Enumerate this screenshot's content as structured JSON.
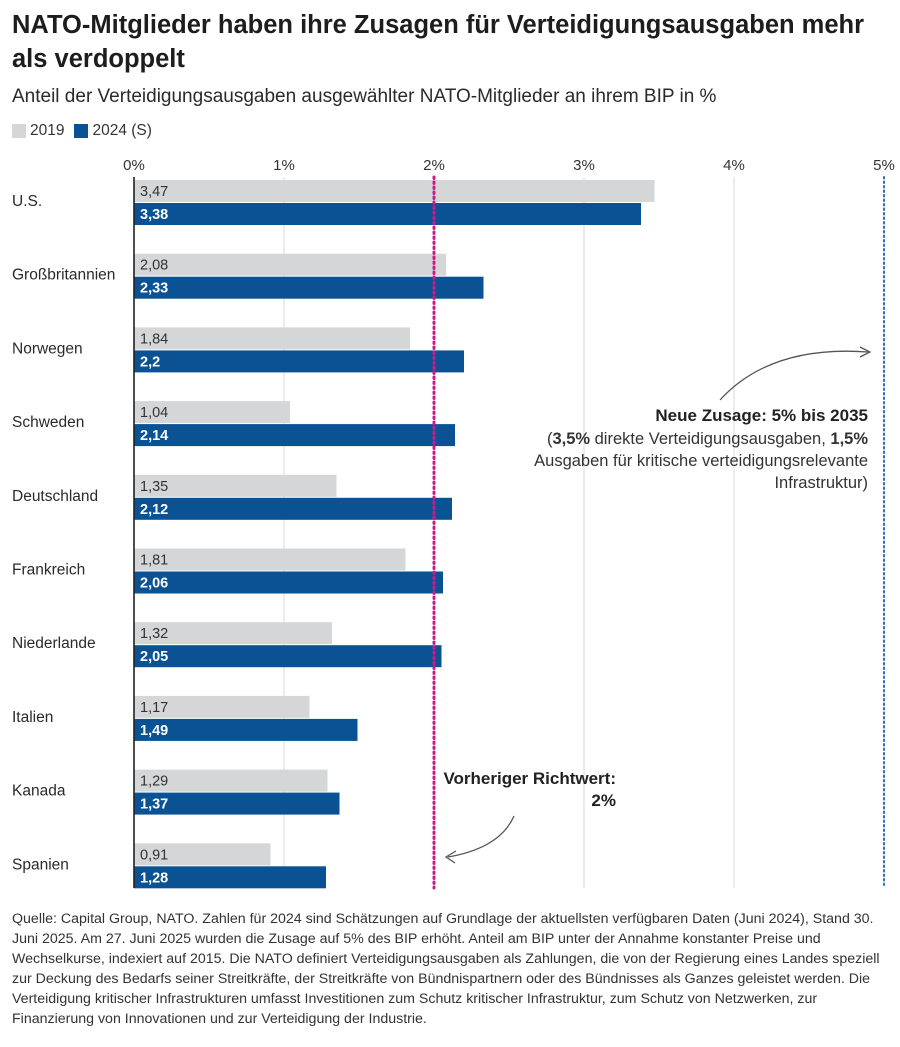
{
  "title": "NATO-Mitglieder haben ihre Zusagen für Verteidigungsausgaben mehr als verdoppelt",
  "subtitle": "Anteil der Verteidigungsausgaben ausgewählter NATO-Mitglieder an ihrem BIP in %",
  "colors": {
    "s2019": "#d4d6d8",
    "s2024": "#0a5294",
    "ref2": "#cc1a8c",
    "ref5": "#2e6fbf",
    "grid": "#d9d9d9",
    "axis": "#222222"
  },
  "chart_data": {
    "type": "bar",
    "orientation": "horizontal",
    "categories": [
      "U.S.",
      "Großbritannien",
      "Norwegen",
      "Schweden",
      "Deutschland",
      "Frankreich",
      "Niederlande",
      "Italien",
      "Kanada",
      "Spanien"
    ],
    "series": [
      {
        "name": "2019",
        "values": [
          3.47,
          2.08,
          1.84,
          1.04,
          1.35,
          1.81,
          1.32,
          1.17,
          1.29,
          0.91
        ],
        "labels": [
          "3,47",
          "2,08",
          "1,84",
          "1,04",
          "1,35",
          "1,81",
          "1,32",
          "1,17",
          "1,29",
          "0,91"
        ]
      },
      {
        "name": "2024 (S)",
        "values": [
          3.38,
          2.33,
          2.2,
          2.14,
          2.12,
          2.06,
          2.05,
          1.49,
          1.37,
          1.28
        ],
        "labels": [
          "3,38",
          "2,33",
          "2,2",
          "2,14",
          "2,12",
          "2,06",
          "2,05",
          "1,49",
          "1,37",
          "1,28"
        ]
      }
    ],
    "xlim": [
      0,
      5
    ],
    "xticks": [
      0,
      1,
      2,
      3,
      4,
      5
    ],
    "xtick_labels": [
      "0%",
      "1%",
      "2%",
      "3%",
      "4%",
      "5%"
    ],
    "grid": true,
    "legend_position": "top-left",
    "reference_lines": [
      {
        "value": 2,
        "style": "dotted",
        "color": "#cc1a8c"
      },
      {
        "value": 5,
        "style": "dotted",
        "color": "#2e6fbf"
      }
    ]
  },
  "annotations": {
    "new_commitment": {
      "heading": "Neue Zusage: 5% bis 2035",
      "line2_open": "(",
      "line2_bold_a": "3,5%",
      "line2_mid": " direkte Verteidigungsausgaben, ",
      "line2_bold_b": "1,5%",
      "line3": "Ausgaben für kritische verteidigungsrelevante",
      "line4": "Infrastruktur)"
    },
    "previous_target": {
      "line1": "Vorheriger Richtwert:",
      "line2": "2%"
    }
  },
  "footer": "Quelle: Capital Group, NATO. Zahlen für 2024 sind Schätzungen auf Grundlage der aktuellsten verfügbaren Daten (Juni 2024), Stand 30. Juni 2025. Am 27. Juni 2025 wurden die Zusage auf 5% des BIP erhöht. Anteil am BIP unter der Annahme konstanter Preise und Wechselkurse, indexiert auf 2015. Die NATO definiert Verteidigungsausgaben als Zahlungen, die von der Regierung eines Landes speziell zur Deckung des Bedarfs seiner Streitkräfte, der Streitkräfte von Bündnispartnern oder des Bündnisses als Ganzes geleistet werden. Die Verteidigung kritischer Infrastrukturen umfasst Investitionen zum Schutz kritischer Infrastruktur, zum Schutz von Netzwerken, zur Finanzierung von Innovationen und zur Verteidigung der Industrie."
}
